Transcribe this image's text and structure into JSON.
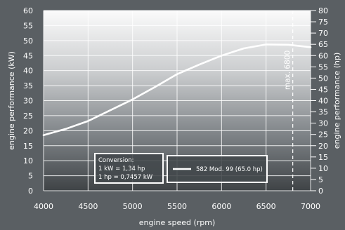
{
  "chart_data": {
    "type": "line",
    "x_label": "engine speed (rpm)",
    "y_label_left": "engine performance (kW)",
    "y_label_right": "engine performance (hp)",
    "x_range": [
      4000,
      7000
    ],
    "y_left_range": [
      0,
      60
    ],
    "y_right_range": [
      0,
      80
    ],
    "x_ticks": [
      "4000",
      "4500",
      "5000",
      "5500",
      "6000",
      "6500",
      "7000"
    ],
    "y_left_ticks": [
      "0",
      "5",
      "10",
      "15",
      "20",
      "25",
      "30",
      "35",
      "40",
      "45",
      "50",
      "55",
      "60"
    ],
    "y_right_ticks": [
      "0",
      "5",
      "10",
      "15",
      "20",
      "25",
      "30",
      "35",
      "40",
      "45",
      "50",
      "55",
      "60",
      "65",
      "70",
      "75",
      "80"
    ],
    "grid": true,
    "series": [
      {
        "name": "582 Mod. 99 (65.0 hp)",
        "color": "#ffffff",
        "x": [
          4000,
          4250,
          4500,
          4750,
          5000,
          5250,
          5500,
          5750,
          6000,
          6250,
          6500,
          6750,
          7000
        ],
        "y": [
          18.5,
          20.6,
          23.2,
          26.8,
          30.4,
          34.5,
          38.8,
          42.0,
          45.0,
          47.4,
          48.7,
          48.6,
          47.8
        ]
      }
    ],
    "annotations": {
      "max_line_x": 6800,
      "max_label": "max. 6800"
    },
    "conversion": {
      "title": "Conversion:",
      "line1": "1 kW  = 1,34 hp",
      "line2": "1 hp   = 0,7457 kW"
    }
  }
}
